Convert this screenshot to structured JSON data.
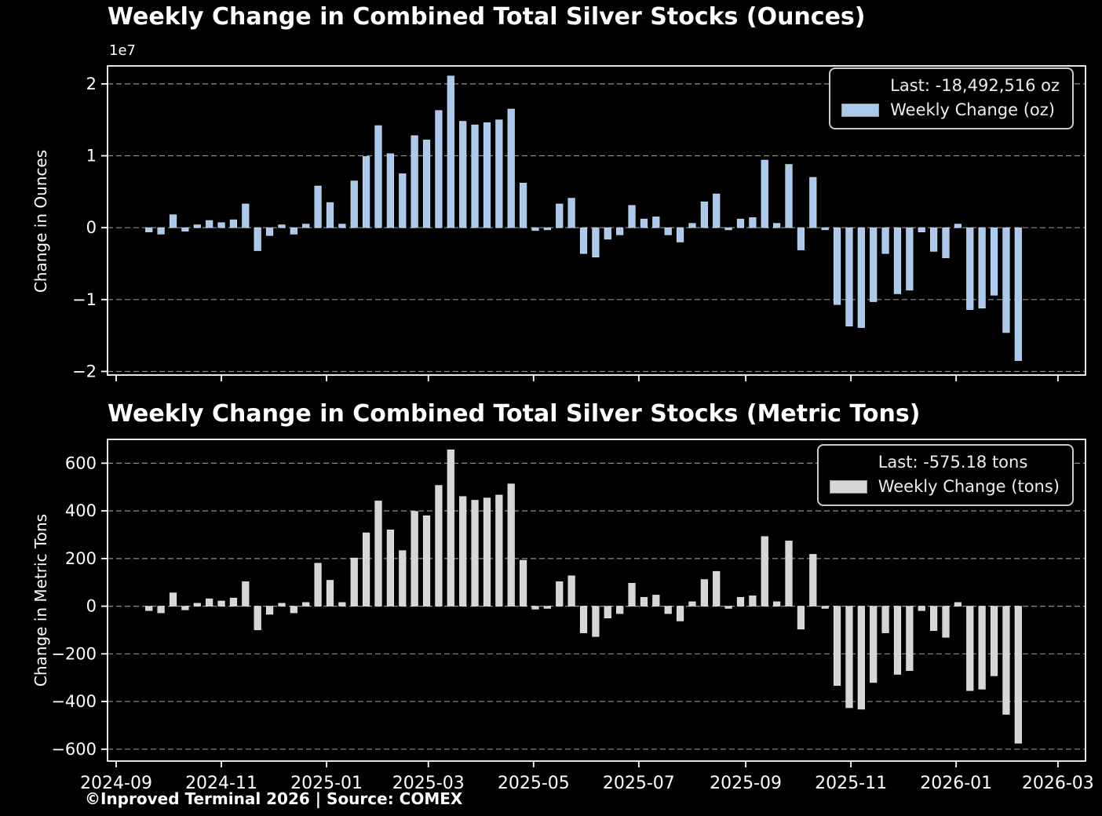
{
  "page": {
    "footer": "©Inproved Terminal 2026 | Source: COMEX"
  },
  "style": {
    "background": "#000000",
    "text_color": "#ffffff",
    "axis_color": "#ffffff",
    "grid_color": "#8f8f8f",
    "bar_width": 8.6
  },
  "x_axis": {
    "min": "2024-08-27",
    "max": "2026-03-17",
    "ticks": [
      {
        "date": "2024-09-01",
        "label": "2024-09"
      },
      {
        "date": "2024-11-01",
        "label": "2024-11"
      },
      {
        "date": "2025-01-01",
        "label": "2025-01"
      },
      {
        "date": "2025-03-01",
        "label": "2025-03"
      },
      {
        "date": "2025-05-01",
        "label": "2025-05"
      },
      {
        "date": "2025-07-01",
        "label": "2025-07"
      },
      {
        "date": "2025-09-01",
        "label": "2025-09"
      },
      {
        "date": "2025-11-01",
        "label": "2025-11"
      },
      {
        "date": "2026-01-01",
        "label": "2026-01"
      },
      {
        "date": "2026-03-01",
        "label": "2026-03"
      }
    ]
  },
  "chart_data": [
    {
      "type": "bar",
      "title": "Weekly Change in Combined Total Silver Stocks (Ounces)",
      "ylabel": "Change in Ounces",
      "offset_label": "1e7",
      "legend": {
        "position": "upper right",
        "last": "Last: -18,492,516 oz",
        "series": "Weekly Change (oz)"
      },
      "bar_color": "#abc9ed",
      "bar_edge_color": "#d3e2f6",
      "grid": true,
      "ylim": [
        -20500000,
        22500000
      ],
      "yticks": [
        {
          "value": 20000000,
          "label": "2"
        },
        {
          "value": 10000000,
          "label": "1"
        },
        {
          "value": 0,
          "label": "0"
        },
        {
          "value": -10000000,
          "label": "−1"
        },
        {
          "value": -20000000,
          "label": "−2"
        }
      ],
      "x": [
        "2024-09-20",
        "2024-09-27",
        "2024-10-04",
        "2024-10-11",
        "2024-10-18",
        "2024-10-25",
        "2024-11-01",
        "2024-11-08",
        "2024-11-15",
        "2024-11-22",
        "2024-11-29",
        "2024-12-06",
        "2024-12-13",
        "2024-12-20",
        "2024-12-27",
        "2025-01-03",
        "2025-01-10",
        "2025-01-17",
        "2025-01-24",
        "2025-01-31",
        "2025-02-07",
        "2025-02-14",
        "2025-02-21",
        "2025-02-28",
        "2025-03-07",
        "2025-03-14",
        "2025-03-21",
        "2025-03-28",
        "2025-04-04",
        "2025-04-11",
        "2025-04-18",
        "2025-04-25",
        "2025-05-02",
        "2025-05-09",
        "2025-05-16",
        "2025-05-23",
        "2025-05-30",
        "2025-06-06",
        "2025-06-13",
        "2025-06-20",
        "2025-06-27",
        "2025-07-04",
        "2025-07-11",
        "2025-07-18",
        "2025-07-25",
        "2025-08-01",
        "2025-08-08",
        "2025-08-15",
        "2025-08-22",
        "2025-08-29",
        "2025-09-05",
        "2025-09-12",
        "2025-09-19",
        "2025-09-26",
        "2025-10-03",
        "2025-10-10",
        "2025-10-17",
        "2025-10-24",
        "2025-10-31",
        "2025-11-07",
        "2025-11-14",
        "2025-11-21",
        "2025-11-28",
        "2025-12-05",
        "2025-12-12",
        "2025-12-19",
        "2025-12-26",
        "2026-01-02",
        "2026-01-09",
        "2026-01-16",
        "2026-01-23",
        "2026-01-30",
        "2026-02-06"
      ],
      "values": [
        -600000,
        -900000,
        1800000,
        -500000,
        400000,
        1000000,
        700000,
        1100000,
        3300000,
        -3200000,
        -1100000,
        400000,
        -900000,
        500000,
        5800000,
        3500000,
        500000,
        6500000,
        9900000,
        14200000,
        10300000,
        7500000,
        12800000,
        12200000,
        16300000,
        21100000,
        14800000,
        14300000,
        14600000,
        15000000,
        16500000,
        6200000,
        -400000,
        -300000,
        3300000,
        4100000,
        -3600000,
        -4100000,
        -1600000,
        -1000000,
        3100000,
        1200000,
        1500000,
        -1000000,
        -2000000,
        600000,
        3600000,
        4700000,
        -300000,
        1200000,
        1400000,
        9400000,
        600000,
        8800000,
        -3100000,
        7000000,
        -300000,
        -10700000,
        -13700000,
        -13900000,
        -10300000,
        -3600000,
        -9200000,
        -8700000,
        -600000,
        -3300000,
        -4200000,
        500000,
        -11400000,
        -11200000,
        -9400000,
        -14600000,
        -18492516
      ]
    },
    {
      "type": "bar",
      "title": "Weekly Change in Combined Total Silver Stocks (Metric Tons)",
      "ylabel": "Change in Metric Tons",
      "offset_label": "",
      "legend": {
        "position": "upper right",
        "last": "Last: -575.18 tons",
        "series": "Weekly Change (tons)"
      },
      "bar_color": "#d6d6d6",
      "bar_edge_color": "#ececec",
      "grid": true,
      "ylim": [
        -650,
        700
      ],
      "yticks": [
        {
          "value": 600,
          "label": "600"
        },
        {
          "value": 400,
          "label": "400"
        },
        {
          "value": 200,
          "label": "200"
        },
        {
          "value": 0,
          "label": "0"
        },
        {
          "value": -200,
          "label": "−200"
        },
        {
          "value": -400,
          "label": "−400"
        },
        {
          "value": -600,
          "label": "−600"
        }
      ],
      "x": [
        "2024-09-20",
        "2024-09-27",
        "2024-10-04",
        "2024-10-11",
        "2024-10-18",
        "2024-10-25",
        "2024-11-01",
        "2024-11-08",
        "2024-11-15",
        "2024-11-22",
        "2024-11-29",
        "2024-12-06",
        "2024-12-13",
        "2024-12-20",
        "2024-12-27",
        "2025-01-03",
        "2025-01-10",
        "2025-01-17",
        "2025-01-24",
        "2025-01-31",
        "2025-02-07",
        "2025-02-14",
        "2025-02-21",
        "2025-02-28",
        "2025-03-07",
        "2025-03-14",
        "2025-03-21",
        "2025-03-28",
        "2025-04-04",
        "2025-04-11",
        "2025-04-18",
        "2025-04-25",
        "2025-05-02",
        "2025-05-09",
        "2025-05-16",
        "2025-05-23",
        "2025-05-30",
        "2025-06-06",
        "2025-06-13",
        "2025-06-20",
        "2025-06-27",
        "2025-07-04",
        "2025-07-11",
        "2025-07-18",
        "2025-07-25",
        "2025-08-01",
        "2025-08-08",
        "2025-08-15",
        "2025-08-22",
        "2025-08-29",
        "2025-09-05",
        "2025-09-12",
        "2025-09-19",
        "2025-09-26",
        "2025-10-03",
        "2025-10-10",
        "2025-10-17",
        "2025-10-24",
        "2025-10-31",
        "2025-11-07",
        "2025-11-14",
        "2025-11-21",
        "2025-11-28",
        "2025-12-05",
        "2025-12-12",
        "2025-12-19",
        "2025-12-26",
        "2026-01-02",
        "2026-01-09",
        "2026-01-16",
        "2026-01-23",
        "2026-01-30",
        "2026-02-06"
      ],
      "values": [
        -18.66,
        -27.99,
        55.99,
        -15.55,
        12.44,
        31.1,
        21.77,
        34.21,
        102.64,
        -99.53,
        -34.21,
        12.44,
        -27.99,
        15.55,
        180.4,
        108.86,
        15.55,
        202.17,
        307.92,
        441.67,
        320.37,
        233.28,
        398.12,
        379.46,
        506.99,
        656.28,
        460.33,
        444.78,
        454.11,
        466.55,
        513.21,
        192.84,
        -12.44,
        -9.33,
        102.64,
        127.52,
        -111.97,
        -127.52,
        -49.77,
        -31.1,
        96.42,
        37.32,
        46.66,
        -31.1,
        -62.21,
        18.66,
        111.97,
        146.19,
        -9.33,
        37.32,
        43.54,
        292.37,
        18.66,
        273.71,
        -96.42,
        217.72,
        -9.33,
        -332.81,
        -426.12,
        -432.34,
        -320.37,
        -111.97,
        -286.15,
        -270.6,
        -18.66,
        -102.64,
        -130.64,
        15.55,
        -354.58,
        -348.36,
        -292.37,
        -454.11,
        -575.18
      ]
    }
  ]
}
